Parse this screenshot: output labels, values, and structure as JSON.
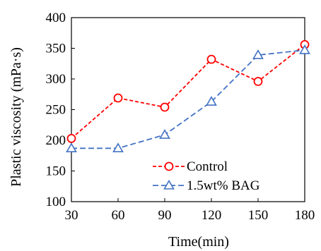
{
  "chart_data": {
    "type": "line",
    "title": "",
    "xlabel": "Time(min)",
    "ylabel": "Plastic viscosity (mPa·s)",
    "x": [
      30,
      60,
      90,
      120,
      150,
      180
    ],
    "xlim": [
      30,
      180
    ],
    "ylim": [
      100,
      400
    ],
    "yticks": [
      100,
      150,
      200,
      250,
      300,
      350,
      400
    ],
    "xticks": [
      30,
      60,
      90,
      120,
      150,
      180
    ],
    "grid": false,
    "legend_position": "bottom-right",
    "series": [
      {
        "name": "Control",
        "values": [
          203,
          269,
          254,
          332,
          296,
          356
        ],
        "color": "#ff0000",
        "marker": "circle",
        "line_style": "dashed"
      },
      {
        "name": "1.5wt% BAG",
        "values": [
          187,
          187,
          209,
          263,
          339,
          347
        ],
        "color": "#4472c4",
        "marker": "triangle",
        "line_style": "dashed"
      }
    ]
  }
}
